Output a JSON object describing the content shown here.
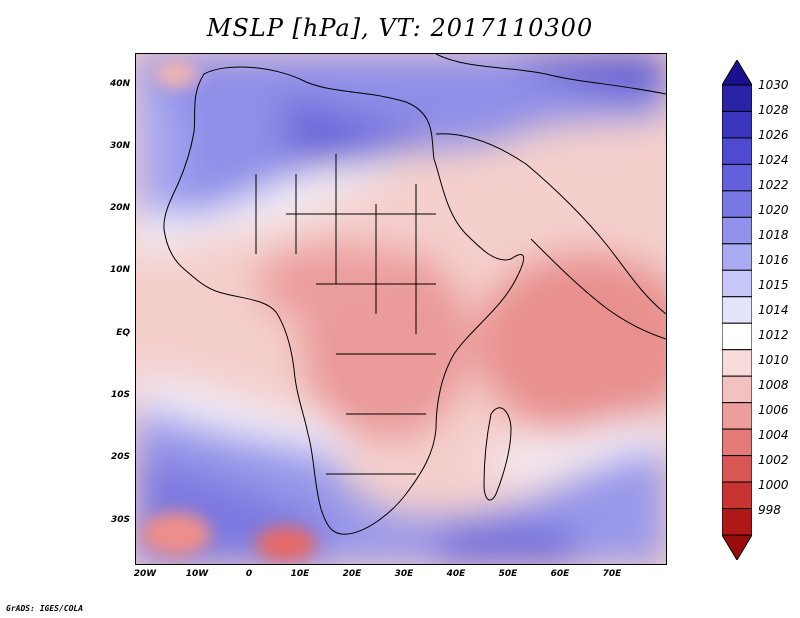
{
  "title": "MSLP [hPa], VT: 2017110300",
  "lat_labels": [
    "40N",
    "30N",
    "20N",
    "10N",
    "EQ",
    "10S",
    "20S",
    "30S"
  ],
  "lon_labels": [
    "20W",
    "10W",
    "0",
    "10E",
    "20E",
    "30E",
    "40E",
    "50E",
    "60E",
    "70E"
  ],
  "colorbar": {
    "levels": [
      "1030",
      "1028",
      "1026",
      "1024",
      "1022",
      "1020",
      "1018",
      "1016",
      "1015",
      "1014",
      "1012",
      "1010",
      "1008",
      "1006",
      "1004",
      "1002",
      "1000",
      "998"
    ],
    "colors": [
      "#1a0f8c",
      "#2a23a8",
      "#3c35c0",
      "#4f4ad0",
      "#6460dc",
      "#7a78e4",
      "#9292ec",
      "#ababf2",
      "#c8c8f8",
      "#e4e4fc",
      "#ffffff",
      "#f8dcdc",
      "#f2c2c0",
      "#ec9e9c",
      "#e47a78",
      "#d85654",
      "#c83432",
      "#b01818",
      "#980c0c"
    ]
  },
  "footer": "GrADS: IGES/COLA"
}
